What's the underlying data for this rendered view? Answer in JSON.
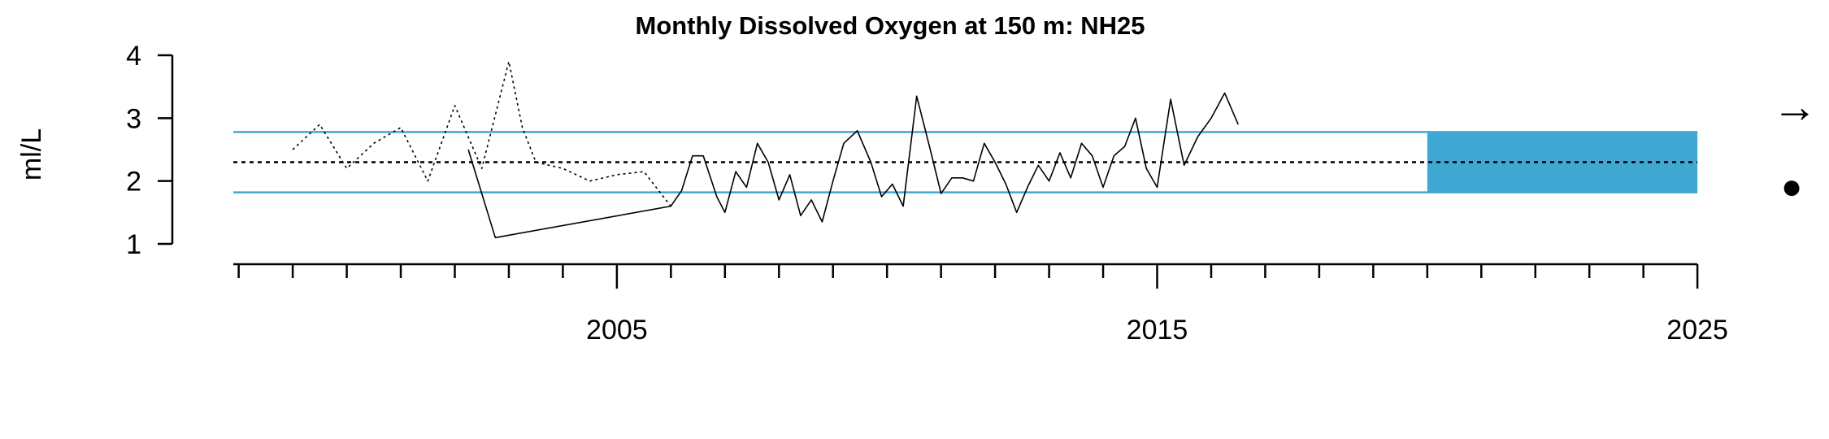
{
  "colors": {
    "band_line": "#3fa9d4",
    "highlight": "#3fa9d4",
    "series": "#000000",
    "mean_line": "#000000"
  },
  "chart_data": {
    "type": "line",
    "title": "Monthly Dissolved Oxygen at 150 m: NH25",
    "ylabel": "ml/L",
    "xlabel": "",
    "xlim": [
      1997.9,
      2025.6
    ],
    "ylim": [
      1,
      4
    ],
    "y_ticks": [
      1,
      2,
      3,
      4
    ],
    "x_tick_labels": [
      "2005",
      "2015",
      "2025"
    ],
    "x_ticks_labeled": [
      2005,
      2015,
      2025
    ],
    "x_minor_step": 1,
    "x_minor_start": 1998,
    "mean": 2.3,
    "band": [
      1.82,
      2.78
    ],
    "highlight_range": [
      2020,
      2025
    ],
    "trend_symbol": "→",
    "status_symbol": "●",
    "series": [
      {
        "style": "solid",
        "x": [
          2002.25,
          2002.5,
          2002.75,
          2006.0,
          2006.2,
          2006.4,
          2006.6,
          2006.85,
          2007.0,
          2007.2,
          2007.4,
          2007.6,
          2007.8,
          2008.0,
          2008.2,
          2008.4,
          2008.6,
          2008.8,
          2009.0,
          2009.2,
          2009.45,
          2009.7,
          2009.9,
          2010.1,
          2010.3,
          2010.55,
          2010.8,
          2011.0,
          2011.2,
          2011.4,
          2011.6,
          2011.8,
          2012.0,
          2012.2,
          2012.4,
          2012.6,
          2012.8,
          2013.0,
          2013.2,
          2013.4,
          2013.6,
          2013.8,
          2014.0,
          2014.2,
          2014.4,
          2014.6,
          2014.8,
          2015.0,
          2015.25,
          2015.5,
          2015.75,
          2016.0,
          2016.25,
          2016.5
        ],
        "y": [
          2.5,
          1.8,
          1.1,
          1.6,
          1.85,
          2.4,
          2.4,
          1.75,
          1.5,
          2.15,
          1.9,
          2.6,
          2.3,
          1.7,
          2.1,
          1.45,
          1.7,
          1.35,
          2.0,
          2.6,
          2.8,
          2.3,
          1.75,
          1.95,
          1.6,
          3.35,
          2.5,
          1.8,
          2.05,
          2.05,
          2.0,
          2.6,
          2.3,
          1.95,
          1.5,
          1.9,
          2.25,
          2.0,
          2.45,
          2.05,
          2.6,
          2.4,
          1.9,
          2.4,
          2.55,
          3.0,
          2.2,
          1.9,
          3.3,
          2.25,
          2.7,
          3.0,
          3.4,
          2.9
        ]
      },
      {
        "style": "dotted",
        "x": [
          1999.0,
          1999.5,
          2000.0,
          2000.5,
          2001.0,
          2001.5,
          2002.0,
          2002.5,
          2003.0,
          2003.25,
          2003.5,
          2004.0,
          2004.5,
          2005.0,
          2005.5,
          2006.0
        ],
        "y": [
          2.5,
          2.9,
          2.2,
          2.6,
          2.85,
          2.0,
          3.2,
          2.2,
          3.9,
          2.85,
          2.3,
          2.2,
          2.0,
          2.1,
          2.15,
          1.6
        ]
      }
    ]
  }
}
